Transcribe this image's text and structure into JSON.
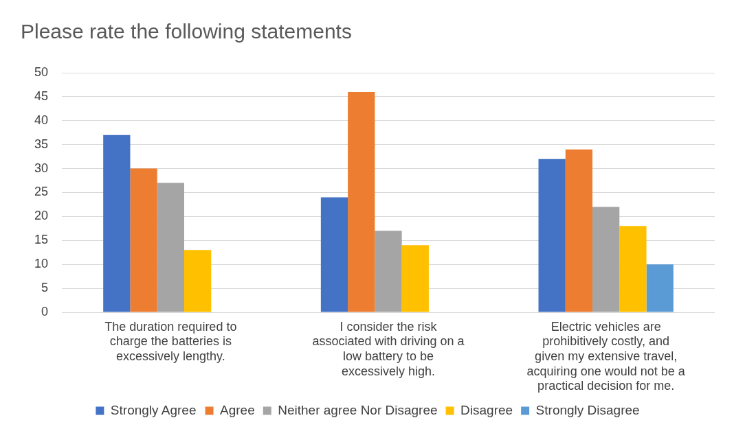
{
  "chart_data": {
    "type": "bar",
    "title": "Please rate the following statements",
    "categories": [
      "The duration required to charge the batteries is excessively lengthy.",
      "I consider the risk associated with driving on a low battery to be excessively high.",
      "Electric vehicles are prohibitively costly, and given my extensive travel, acquiring one would not be a practical decision for me."
    ],
    "series": [
      {
        "name": "Strongly Agree",
        "color": "#4472c4",
        "values": [
          37,
          24,
          32
        ]
      },
      {
        "name": "Agree",
        "color": "#ed7d31",
        "values": [
          30,
          46,
          34
        ]
      },
      {
        "name": "Neither agree Nor Disagree",
        "color": "#a5a5a5",
        "values": [
          27,
          17,
          22
        ]
      },
      {
        "name": "Disagree",
        "color": "#ffc000",
        "values": [
          13,
          14,
          18
        ]
      },
      {
        "name": "Strongly Disagree",
        "color": "#5b9bd5",
        "values": [
          0,
          0,
          10
        ]
      }
    ],
    "ylim": [
      0,
      50
    ],
    "yticks": [
      0,
      5,
      10,
      15,
      20,
      25,
      30,
      35,
      40,
      45,
      50
    ],
    "grid": "y",
    "legend": "bottom"
  }
}
